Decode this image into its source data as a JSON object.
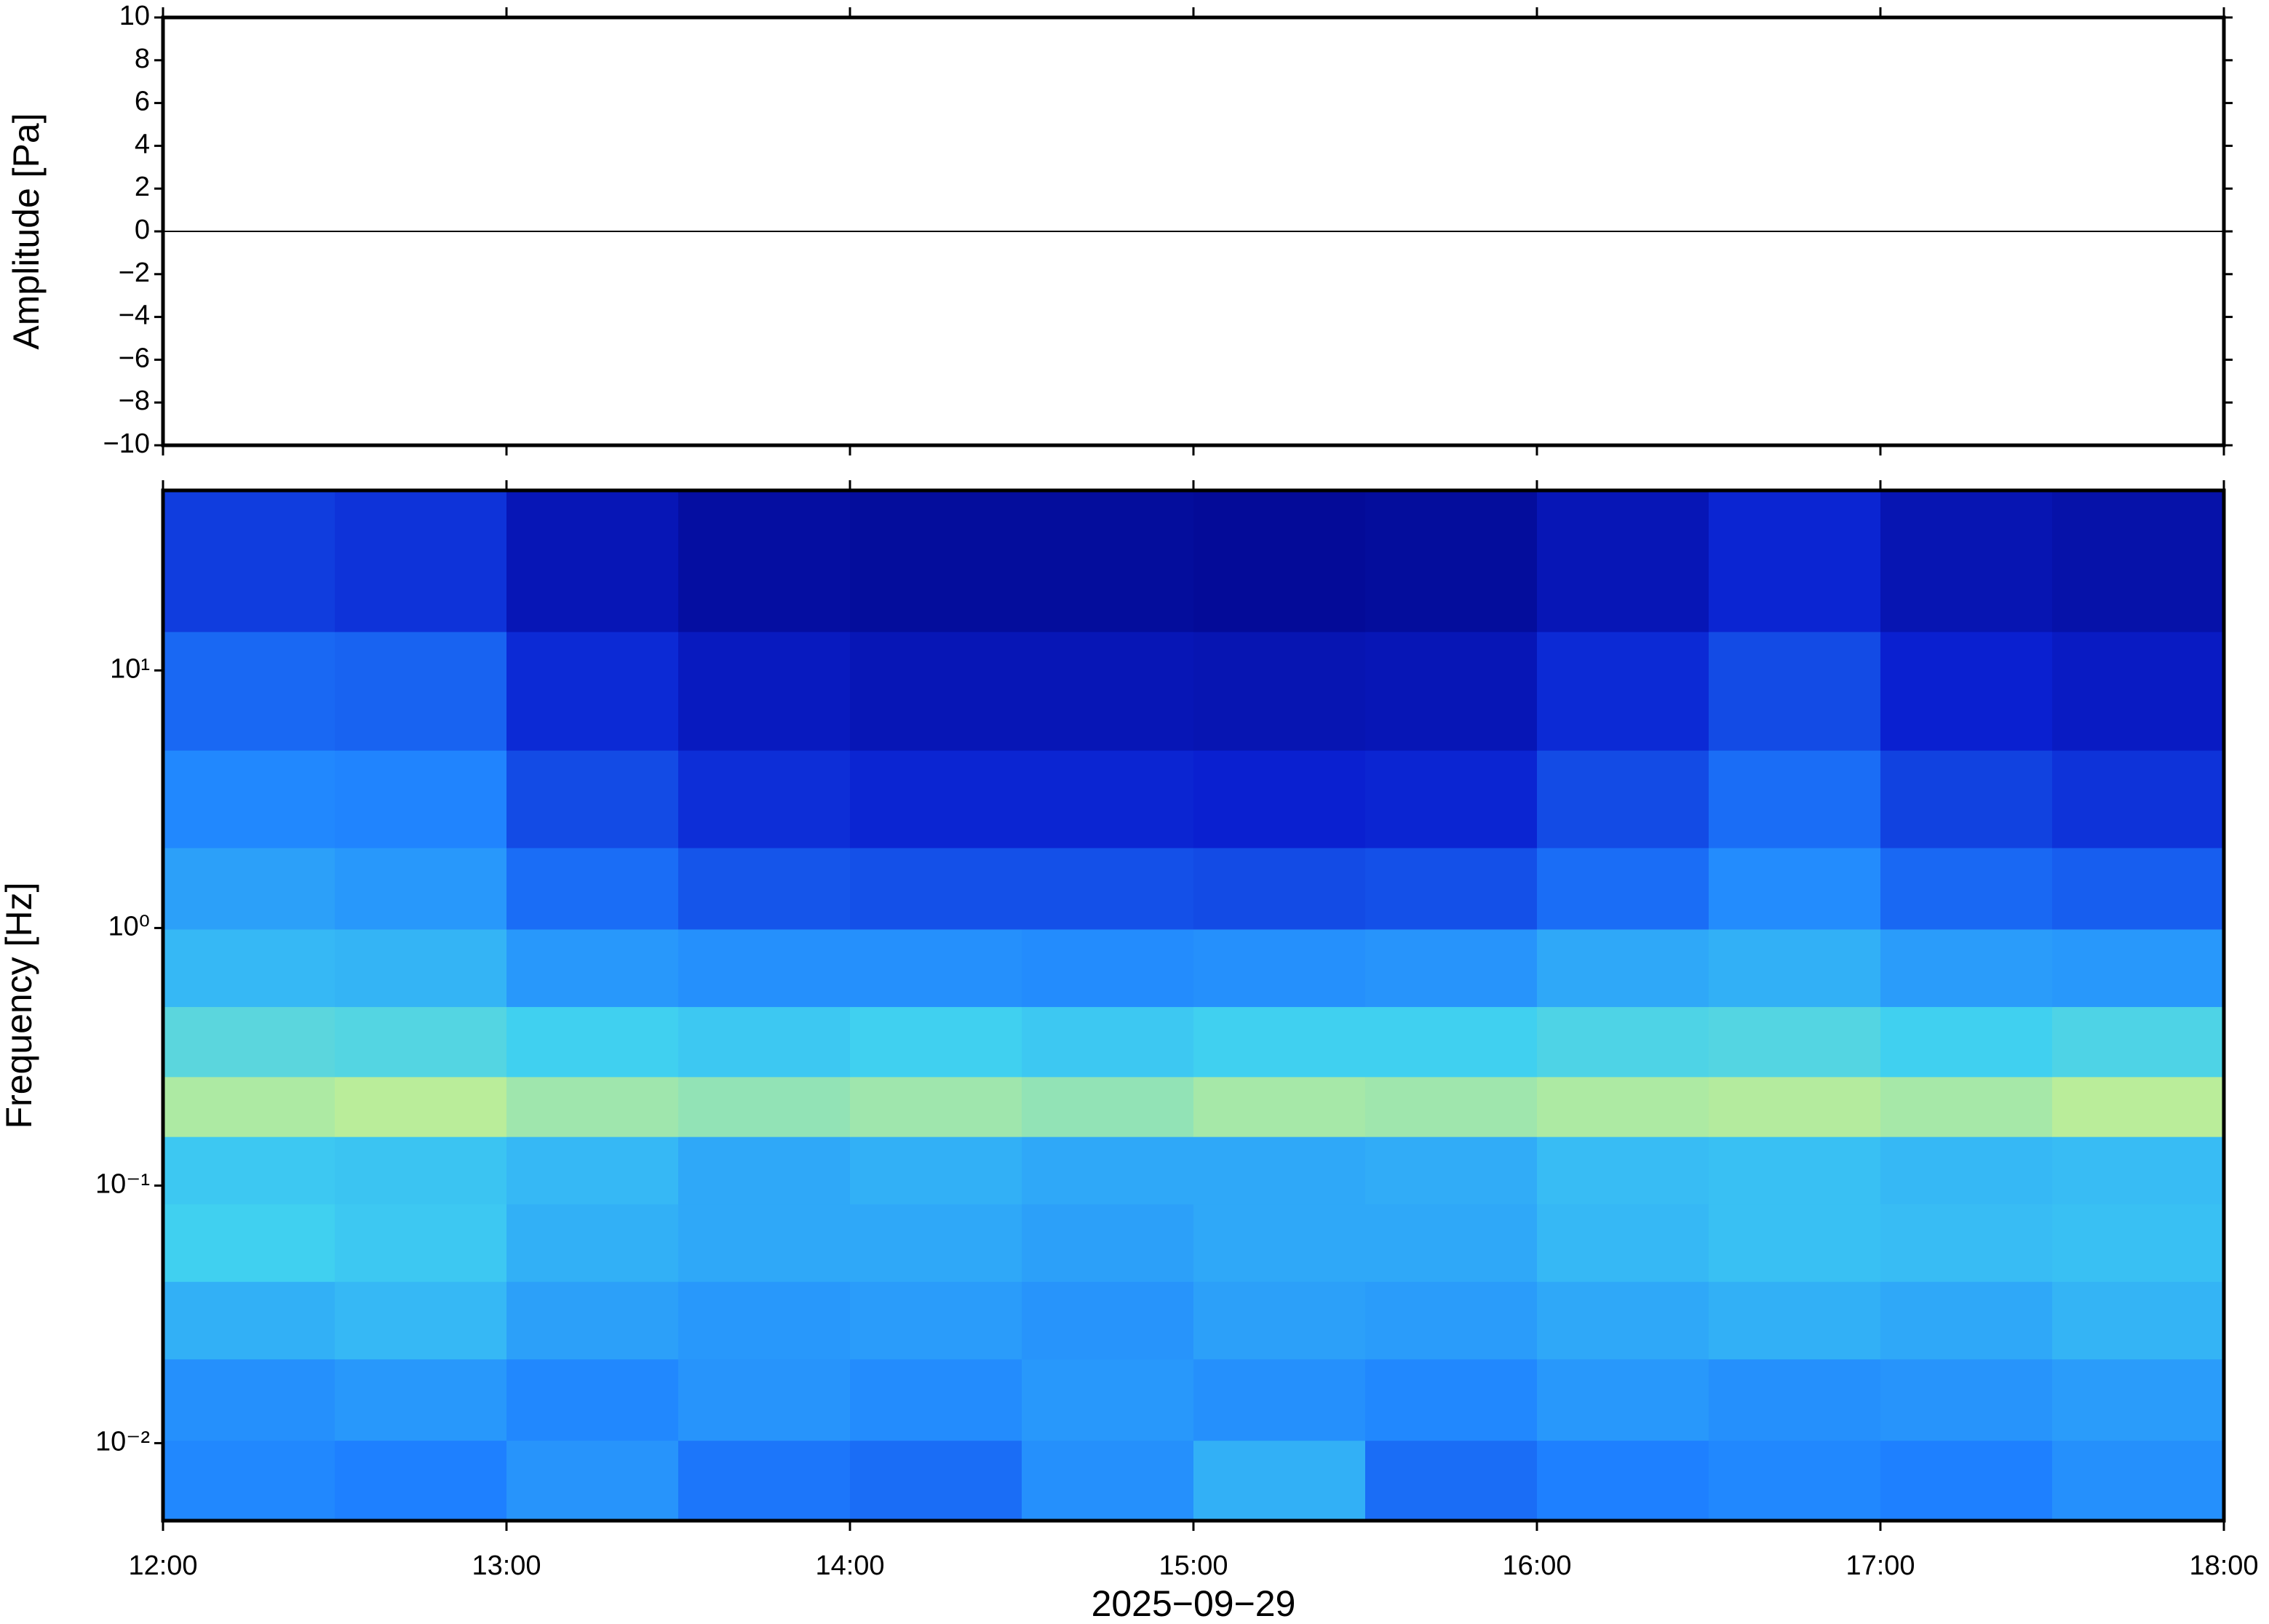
{
  "chart_data": [
    {
      "type": "line",
      "ylabel": "Amplitude [Pa]",
      "xlim": [
        12,
        18
      ],
      "ylim": [
        -10,
        10
      ],
      "yticks": [
        {
          "value": -10,
          "label": "−10"
        },
        {
          "value": -8,
          "label": "−8"
        },
        {
          "value": -6,
          "label": "−6"
        },
        {
          "value": -4,
          "label": "−4"
        },
        {
          "value": -2,
          "label": "−2"
        },
        0,
        2,
        4,
        6,
        8,
        10
      ],
      "x": [
        12,
        12.5,
        13,
        13.5,
        14,
        14.5,
        15,
        15.5,
        16,
        16.5,
        17,
        17.5,
        18
      ],
      "series": [
        {
          "color": "#000000",
          "values": [
            0,
            0,
            0,
            0,
            0,
            0,
            0,
            0,
            0,
            0,
            0,
            0,
            0
          ]
        }
      ]
    },
    {
      "type": "heatmap",
      "ylabel": "Frequency [Hz]",
      "xlabel": "2025−09−29",
      "xlim": [
        12,
        18
      ],
      "xticks": [
        {
          "value": 12,
          "label": "12:00"
        },
        {
          "value": 13,
          "label": "13:00"
        },
        {
          "value": 14,
          "label": "14:00"
        },
        {
          "value": 15,
          "label": "15:00"
        },
        {
          "value": 16,
          "label": "16:00"
        },
        {
          "value": 17,
          "label": "17:00"
        },
        {
          "value": 18,
          "label": "18:00"
        }
      ],
      "ylim": [
        0.005,
        50
      ],
      "log_y": true,
      "yticks": [
        {
          "value": 0.01,
          "label": "10⁻²"
        },
        {
          "value": 0.1,
          "label": "10⁻¹"
        },
        {
          "value": 1,
          "label": "10⁰"
        },
        {
          "value": 10,
          "label": "10¹"
        }
      ],
      "x": [
        12.25,
        12.75,
        13.25,
        13.75,
        14.25,
        14.75,
        15.25,
        15.75,
        16.25,
        16.75,
        17.25,
        17.75
      ],
      "y": [
        0.007,
        0.015,
        0.03,
        0.06,
        0.12,
        0.2,
        0.35,
        0.7,
        1.4,
        3,
        8,
        25
      ],
      "z": [
        [
          0.42,
          0.4,
          0.45,
          0.38,
          0.36,
          0.44,
          0.52,
          0.36,
          0.4,
          0.42,
          0.4,
          0.44
        ],
        [
          0.44,
          0.46,
          0.42,
          0.45,
          0.43,
          0.46,
          0.44,
          0.42,
          0.46,
          0.44,
          0.45,
          0.47
        ],
        [
          0.52,
          0.54,
          0.48,
          0.46,
          0.47,
          0.45,
          0.48,
          0.47,
          0.5,
          0.52,
          0.5,
          0.53
        ],
        [
          0.6,
          0.58,
          0.52,
          0.5,
          0.5,
          0.48,
          0.5,
          0.5,
          0.54,
          0.56,
          0.55,
          0.56
        ],
        [
          0.58,
          0.57,
          0.54,
          0.5,
          0.52,
          0.5,
          0.5,
          0.51,
          0.55,
          0.56,
          0.54,
          0.55
        ],
        [
          0.76,
          0.78,
          0.74,
          0.72,
          0.74,
          0.72,
          0.75,
          0.74,
          0.76,
          0.77,
          0.75,
          0.78
        ],
        [
          0.64,
          0.63,
          0.6,
          0.58,
          0.6,
          0.58,
          0.6,
          0.6,
          0.62,
          0.63,
          0.6,
          0.62
        ],
        [
          0.54,
          0.53,
          0.46,
          0.44,
          0.44,
          0.43,
          0.44,
          0.45,
          0.5,
          0.52,
          0.47,
          0.46
        ],
        [
          0.48,
          0.46,
          0.36,
          0.31,
          0.3,
          0.3,
          0.29,
          0.3,
          0.36,
          0.43,
          0.35,
          0.33
        ],
        [
          0.42,
          0.41,
          0.29,
          0.23,
          0.21,
          0.21,
          0.2,
          0.21,
          0.29,
          0.36,
          0.27,
          0.24
        ],
        [
          0.35,
          0.34,
          0.22,
          0.16,
          0.14,
          0.14,
          0.13,
          0.14,
          0.22,
          0.29,
          0.2,
          0.17
        ],
        [
          0.26,
          0.24,
          0.14,
          0.09,
          0.08,
          0.08,
          0.07,
          0.08,
          0.14,
          0.21,
          0.13,
          0.11
        ]
      ],
      "zlim": [
        0,
        1
      ],
      "colors": [
        "#00007a",
        "#0a20d0",
        "#1e80ff",
        "#40d0f0",
        "#c8f090",
        "#ffe080"
      ]
    }
  ]
}
